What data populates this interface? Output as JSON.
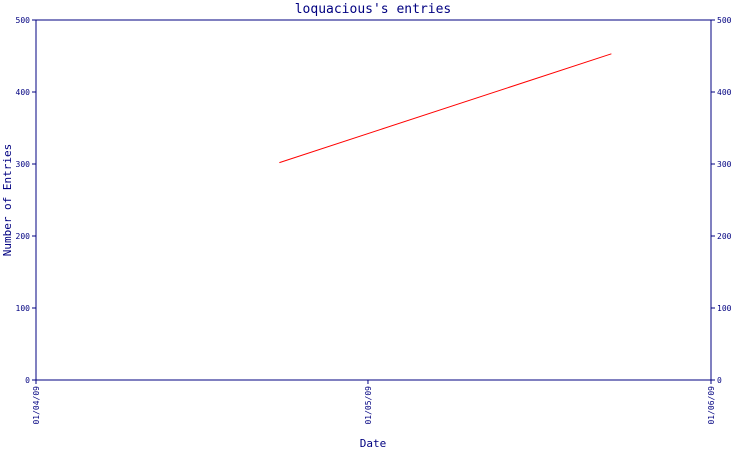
{
  "chart_data": {
    "type": "line",
    "title": "loquacious's entries",
    "xlabel": "Date",
    "ylabel": "Number of Entries",
    "x_ticks": [
      "01/04/09",
      "01/05/09",
      "01/06/09"
    ],
    "ylim": [
      0,
      500
    ],
    "y_ticks": [
      0,
      100,
      200,
      300,
      400,
      500
    ],
    "grid": false,
    "series": [
      {
        "x": [
          "2009-04-23",
          "2009-05-23"
        ],
        "values": [
          302,
          453
        ],
        "color": "#ff0000"
      }
    ],
    "colors": {
      "axis": "#000080",
      "line": "#ff0000",
      "background": "#ffffff"
    }
  }
}
